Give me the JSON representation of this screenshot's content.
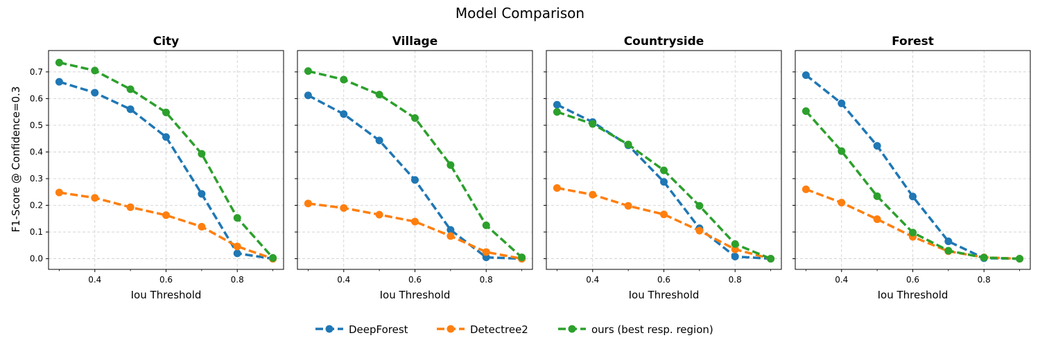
{
  "figure": {
    "title": "Model Comparison",
    "ylabel": "F1-Score @ Confidence=0.3",
    "xlabel": "Iou Threshold"
  },
  "colors": {
    "DeepForest": "#1f77b4",
    "Detectree2": "#ff7f0e",
    "ours (best resp. region)": "#2ca02c",
    "grid": "#cccccc",
    "axis": "#000000"
  },
  "legend": {
    "placement": "bottom-center",
    "entries": [
      "DeepForest",
      "Detectree2",
      "ours (best resp. region)"
    ]
  },
  "chart_data": [
    {
      "type": "line",
      "title": "City",
      "x": [
        0.3,
        0.4,
        0.5,
        0.6,
        0.7,
        0.8,
        0.9
      ],
      "xlim": [
        0.27,
        0.93
      ],
      "ylim": [
        -0.04,
        0.78
      ],
      "xticks": [
        0.4,
        0.6,
        0.8
      ],
      "yticks": [
        0.0,
        0.1,
        0.2,
        0.3,
        0.4,
        0.5,
        0.6,
        0.7
      ],
      "grid": true,
      "series": [
        {
          "name": "DeepForest",
          "values": [
            0.663,
            0.622,
            0.56,
            0.456,
            0.243,
            0.02,
            0.0
          ]
        },
        {
          "name": "Detectree2",
          "values": [
            0.248,
            0.228,
            0.193,
            0.163,
            0.12,
            0.046,
            0.0
          ]
        },
        {
          "name": "ours (best resp. region)",
          "values": [
            0.735,
            0.705,
            0.635,
            0.548,
            0.393,
            0.153,
            0.003
          ]
        }
      ]
    },
    {
      "type": "line",
      "title": "Village",
      "x": [
        0.3,
        0.4,
        0.5,
        0.6,
        0.7,
        0.8,
        0.9
      ],
      "xlim": [
        0.27,
        0.93
      ],
      "ylim": [
        -0.04,
        0.78
      ],
      "xticks": [
        0.4,
        0.6,
        0.8
      ],
      "yticks": [
        0.0,
        0.1,
        0.2,
        0.3,
        0.4,
        0.5,
        0.6,
        0.7
      ],
      "grid": true,
      "series": [
        {
          "name": "DeepForest",
          "values": [
            0.612,
            0.542,
            0.443,
            0.295,
            0.108,
            0.005,
            0.0
          ]
        },
        {
          "name": "Detectree2",
          "values": [
            0.207,
            0.19,
            0.165,
            0.139,
            0.085,
            0.025,
            0.0
          ]
        },
        {
          "name": "ours (best resp. region)",
          "values": [
            0.703,
            0.671,
            0.615,
            0.527,
            0.351,
            0.125,
            0.005
          ]
        }
      ]
    },
    {
      "type": "line",
      "title": "Countryside",
      "x": [
        0.3,
        0.4,
        0.5,
        0.6,
        0.7,
        0.8,
        0.9
      ],
      "xlim": [
        0.27,
        0.93
      ],
      "ylim": [
        -0.04,
        0.78
      ],
      "xticks": [
        0.4,
        0.6,
        0.8
      ],
      "yticks": [
        0.0,
        0.1,
        0.2,
        0.3,
        0.4,
        0.5,
        0.6,
        0.7
      ],
      "grid": true,
      "series": [
        {
          "name": "DeepForest",
          "values": [
            0.577,
            0.512,
            0.425,
            0.288,
            0.114,
            0.008,
            0.0
          ]
        },
        {
          "name": "Detectree2",
          "values": [
            0.265,
            0.24,
            0.198,
            0.166,
            0.105,
            0.035,
            0.0
          ]
        },
        {
          "name": "ours (best resp. region)",
          "values": [
            0.55,
            0.505,
            0.428,
            0.331,
            0.198,
            0.055,
            0.0
          ]
        }
      ]
    },
    {
      "type": "line",
      "title": "Forest",
      "x": [
        0.3,
        0.4,
        0.5,
        0.6,
        0.7,
        0.8,
        0.9
      ],
      "xlim": [
        0.27,
        0.93
      ],
      "ylim": [
        -0.04,
        0.78
      ],
      "xticks": [
        0.4,
        0.6,
        0.8
      ],
      "yticks": [
        0.0,
        0.1,
        0.2,
        0.3,
        0.4,
        0.5,
        0.6,
        0.7
      ],
      "grid": true,
      "series": [
        {
          "name": "DeepForest",
          "values": [
            0.688,
            0.582,
            0.423,
            0.233,
            0.065,
            0.002,
            0.0
          ]
        },
        {
          "name": "Detectree2",
          "values": [
            0.26,
            0.21,
            0.148,
            0.082,
            0.028,
            0.005,
            0.0
          ]
        },
        {
          "name": "ours (best resp. region)",
          "values": [
            0.553,
            0.403,
            0.234,
            0.098,
            0.03,
            0.004,
            0.0
          ]
        }
      ]
    }
  ]
}
